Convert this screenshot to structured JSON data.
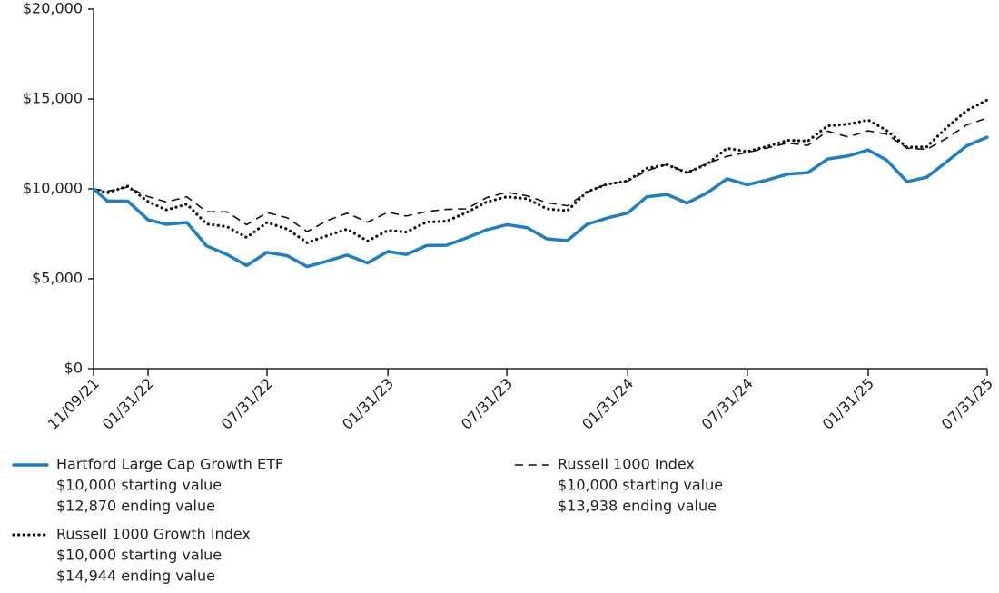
{
  "chart_data": {
    "type": "line",
    "x": [
      "11/09/21",
      "11/30/21",
      "12/31/21",
      "01/31/22",
      "02/28/22",
      "03/31/22",
      "04/30/22",
      "05/31/22",
      "06/30/22",
      "07/31/22",
      "08/31/22",
      "09/30/22",
      "10/31/22",
      "11/30/22",
      "12/31/22",
      "01/31/23",
      "02/28/23",
      "03/31/23",
      "04/30/23",
      "05/31/23",
      "06/30/23",
      "07/31/23",
      "08/31/23",
      "09/30/23",
      "10/31/23",
      "11/30/23",
      "12/31/23",
      "01/31/24",
      "02/29/24",
      "03/31/24",
      "04/30/24",
      "05/31/24",
      "06/30/24",
      "07/31/24",
      "08/31/24",
      "09/30/24",
      "10/31/24",
      "11/30/24",
      "12/31/24",
      "01/31/25",
      "02/28/25",
      "03/31/25",
      "04/30/25",
      "05/31/25",
      "06/30/25",
      "07/31/25"
    ],
    "xlim": [
      "11/09/21",
      "07/31/25"
    ],
    "xticks": [
      "11/09/21",
      "01/31/22",
      "07/31/22",
      "01/31/23",
      "07/31/23",
      "01/31/24",
      "07/31/24",
      "01/31/25",
      "07/31/25"
    ],
    "ylim": [
      0,
      20000
    ],
    "yticks": [
      {
        "value": 0,
        "label": "$0"
      },
      {
        "value": 5000,
        "label": "$5,000"
      },
      {
        "value": 10000,
        "label": "$10,000"
      },
      {
        "value": 15000,
        "label": "$15,000"
      },
      {
        "value": 20000,
        "label": "$20,000"
      }
    ],
    "series": [
      {
        "name": "Hartford Large Cap Growth ETF",
        "color": "#1f7fc3",
        "style": "solid",
        "legend_lines": [
          "$10,000 starting value",
          "$12,870 ending value"
        ],
        "values": [
          10000,
          9330,
          9320,
          8280,
          8030,
          8130,
          6830,
          6350,
          5740,
          6470,
          6280,
          5680,
          5990,
          6320,
          5880,
          6520,
          6350,
          6850,
          6860,
          7280,
          7720,
          8010,
          7840,
          7220,
          7120,
          8030,
          8380,
          8660,
          9560,
          9690,
          9210,
          9780,
          10560,
          10230,
          10500,
          10820,
          10900,
          11660,
          11830,
          12160,
          11600,
          10400,
          10650,
          11530,
          12400,
          12870
        ]
      },
      {
        "name": "Russell 1000 Index",
        "color": "#111111",
        "style": "dashed",
        "legend_lines": [
          "$10,000 starting value",
          "$13,938 ending value"
        ],
        "values": [
          10000,
          9870,
          10100,
          9570,
          9270,
          9560,
          8730,
          8720,
          8010,
          8680,
          8390,
          7620,
          8240,
          8650,
          8150,
          8700,
          8490,
          8740,
          8860,
          8890,
          9510,
          9810,
          9610,
          9240,
          9060,
          9820,
          10290,
          10430,
          11010,
          11370,
          10900,
          11420,
          11810,
          12030,
          12280,
          12550,
          12420,
          13210,
          12890,
          13230,
          13040,
          12260,
          12200,
          12830,
          13560,
          13938
        ]
      },
      {
        "name": "Russell 1000 Growth Index",
        "color": "#111111",
        "style": "dotted",
        "legend_lines": [
          "$10,000 starting value",
          "$14,944 ending value"
        ],
        "values": [
          10000,
          9780,
          10150,
          9290,
          8830,
          9150,
          8050,
          7900,
          7300,
          8130,
          7760,
          7010,
          7400,
          7760,
          7100,
          7690,
          7600,
          8160,
          8200,
          8690,
          9270,
          9560,
          9450,
          8890,
          8780,
          9840,
          10260,
          10450,
          11150,
          11340,
          10900,
          11380,
          12260,
          12070,
          12370,
          12700,
          12660,
          13500,
          13600,
          13830,
          13250,
          12310,
          12340,
          13430,
          14360,
          14944
        ]
      }
    ]
  }
}
